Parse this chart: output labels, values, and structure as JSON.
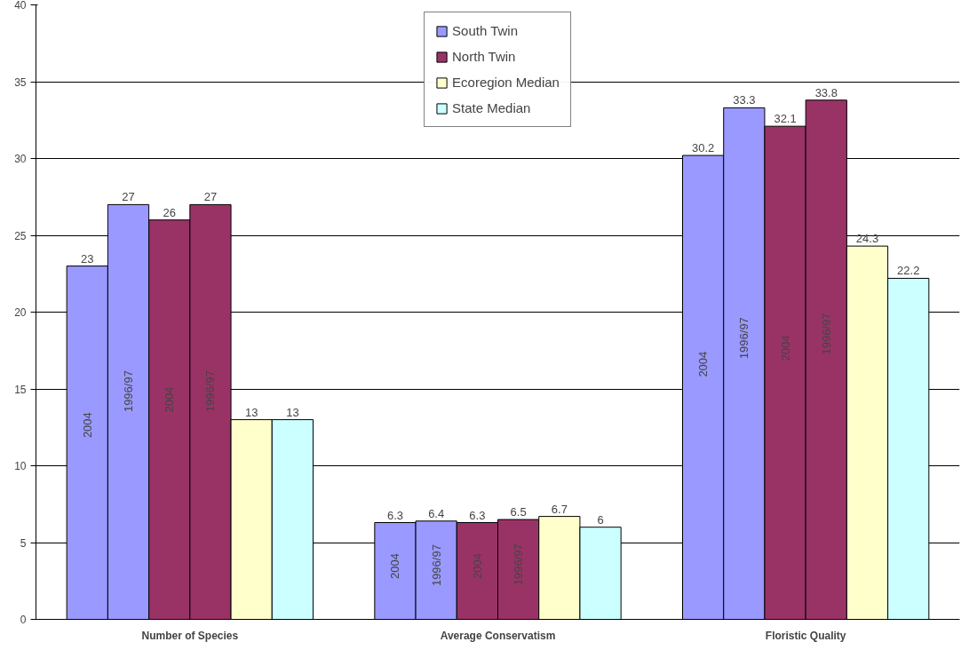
{
  "chart_data": {
    "type": "bar",
    "categories": [
      "Number of Species",
      "Average Conservatism",
      "Floristic Quality"
    ],
    "series": [
      {
        "name": "South Twin",
        "color": "#9999ff",
        "values": [
          23,
          6.3,
          30.2
        ]
      },
      {
        "color": "#9999ff",
        "values": [
          27,
          6.4,
          33.3
        ]
      },
      {
        "name": "North Twin",
        "color": "#993366",
        "values": [
          26,
          6.3,
          32.1
        ]
      },
      {
        "color": "#993366",
        "values": [
          27,
          6.5,
          33.8
        ]
      },
      {
        "name": "Ecoregion Median",
        "color": "#ffffcc",
        "values": [
          13,
          6.7,
          24.3
        ]
      },
      {
        "name": "State Median",
        "color": "#ccffff",
        "values": [
          13,
          6,
          22.2
        ]
      }
    ],
    "annotations": [
      "2004",
      "1996/97",
      "2004",
      "1996/97"
    ],
    "ylim": [
      0,
      40
    ],
    "yticks": [
      0,
      5,
      10,
      15,
      20,
      25,
      30,
      35,
      40
    ],
    "grid": "y",
    "legend": "top",
    "data_labels": true
  }
}
